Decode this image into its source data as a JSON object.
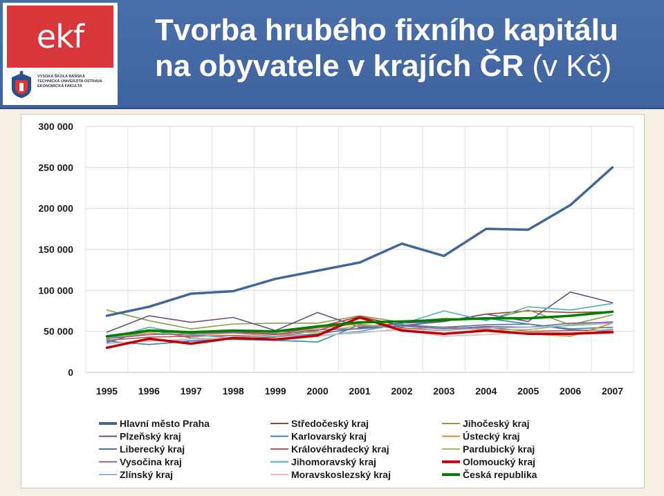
{
  "header": {
    "title_line1": "Tvorba hrubého fixního kapitálu",
    "title_line2": "na obyvatele v krajích ČR",
    "title_unit": " (v Kč)",
    "logo": {
      "mark": "ekf",
      "text_lines": [
        "VYSOKÁ ŠKOLA BÁŇSKÁ",
        "TECHNICKÁ UNIVERZITA OSTRAVA",
        "EKONOMICKÁ FAKULTA"
      ]
    }
  },
  "chart_data": {
    "type": "line",
    "title": "",
    "xlabel": "",
    "ylabel": "",
    "ylim": [
      0,
      300000
    ],
    "yticks": [
      "0",
      "50 000",
      "100 000",
      "150 000",
      "200 000",
      "250 000",
      "300 000"
    ],
    "categories": [
      "1995",
      "1996",
      "1997",
      "1998",
      "1999",
      "2000",
      "2001",
      "2002",
      "2003",
      "2004",
      "2005",
      "2006",
      "2007"
    ],
    "grid": true,
    "legend_position": "bottom",
    "series": [
      {
        "name": "Hlavní město Praha",
        "color": "#41679a",
        "width": 3.5,
        "values": [
          69000,
          80000,
          96000,
          99000,
          114000,
          124000,
          134000,
          157000,
          142000,
          175000,
          174000,
          204000,
          250000
        ]
      },
      {
        "name": "Středočeský kraj",
        "color": "#a63a37",
        "width": 1.6,
        "values": [
          42000,
          50000,
          48000,
          50000,
          47000,
          55000,
          68000,
          57000,
          62000,
          71000,
          75000,
          73000,
          74000
        ]
      },
      {
        "name": "Jihočeský kraj",
        "color": "#86a044",
        "width": 1.6,
        "values": [
          76000,
          63000,
          53000,
          59000,
          60000,
          60000,
          69000,
          61000,
          66000,
          64000,
          76000,
          58000,
          70000
        ]
      },
      {
        "name": "Plzeňský kraj",
        "color": "#6b4c8a",
        "width": 1.6,
        "values": [
          49000,
          69000,
          61000,
          67000,
          51000,
          73000,
          55000,
          60000,
          62000,
          71000,
          62000,
          98000,
          85000
        ]
      },
      {
        "name": "Karlovarský kraj",
        "color": "#2f8aa3",
        "width": 1.6,
        "values": [
          36000,
          52000,
          42000,
          40000,
          39000,
          37000,
          58000,
          55000,
          64000,
          66000,
          59000,
          53000,
          55000
        ]
      },
      {
        "name": "Ústecký kraj",
        "color": "#e08535",
        "width": 1.6,
        "values": [
          42000,
          48000,
          45000,
          48000,
          44000,
          54000,
          59000,
          53000,
          55000,
          53000,
          47000,
          44000,
          60000
        ]
      },
      {
        "name": "Liberecký kraj",
        "color": "#4b74a8",
        "width": 1.6,
        "values": [
          38000,
          34000,
          38000,
          41000,
          43000,
          47000,
          54000,
          58000,
          55000,
          58000,
          59000,
          52000,
          50000
        ]
      },
      {
        "name": "Královéhradecký kraj",
        "color": "#c0504d",
        "width": 1.6,
        "values": [
          39000,
          43000,
          44000,
          45000,
          43000,
          51000,
          66000,
          54000,
          51000,
          55000,
          50000,
          51000,
          52000
        ]
      },
      {
        "name": "Pardubický kraj",
        "color": "#9bbb59",
        "width": 1.6,
        "values": [
          44000,
          46000,
          50000,
          51000,
          48000,
          49000,
          57000,
          56000,
          54000,
          52000,
          52000,
          58000,
          62000
        ]
      },
      {
        "name": "Vysočina kraj",
        "color": "#8064a2",
        "width": 1.6,
        "values": [
          41000,
          46000,
          47000,
          49000,
          46000,
          52000,
          53000,
          57000,
          53000,
          56000,
          55000,
          60000,
          61000
        ]
      },
      {
        "name": "Jihomoravský kraj",
        "color": "#4bacc6",
        "width": 1.6,
        "values": [
          40000,
          55000,
          46000,
          42000,
          39000,
          44000,
          50000,
          59000,
          75000,
          63000,
          80000,
          76000,
          84000
        ]
      },
      {
        "name": "Olomoucký kraj",
        "color": "#c00000",
        "width": 3.5,
        "values": [
          30000,
          41000,
          35000,
          42000,
          40000,
          45000,
          67000,
          51000,
          47000,
          51000,
          47000,
          47000,
          49000
        ]
      },
      {
        "name": "Zlínský kraj",
        "color": "#95b3d7",
        "width": 1.6,
        "values": [
          35000,
          39000,
          39000,
          43000,
          44000,
          45000,
          48000,
          53000,
          51000,
          54000,
          55000,
          57000,
          60000
        ]
      },
      {
        "name": "Moravskoslezský kraj",
        "color": "#e6b9b8",
        "width": 1.6,
        "values": [
          35000,
          38000,
          41000,
          42000,
          40000,
          44000,
          49000,
          52000,
          44000,
          46000,
          49000,
          48000,
          53000
        ]
      },
      {
        "name": "Česká republika",
        "color": "#008000",
        "width": 3.5,
        "values": [
          44000,
          51000,
          49000,
          51000,
          50000,
          56000,
          61000,
          62000,
          64000,
          66000,
          66000,
          69000,
          74000
        ]
      }
    ]
  }
}
